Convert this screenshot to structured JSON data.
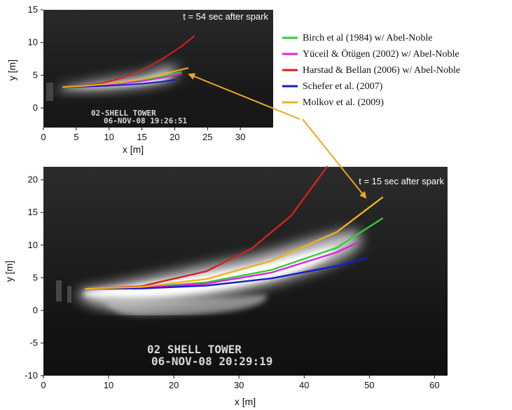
{
  "chart_data": [
    {
      "type": "line",
      "annotation": "t = 54 sec after spark",
      "overlay_text": [
        "02-SHELL TOWER",
        "06-NOV-08 19:26:51"
      ],
      "xlabel": "x [m]",
      "ylabel": "y [m]",
      "xlim": [
        0,
        35
      ],
      "ylim": [
        -3,
        15
      ],
      "xticks": [
        0,
        5,
        10,
        15,
        20,
        25,
        30
      ],
      "yticks": [
        0,
        5,
        10,
        15
      ],
      "background": "grayscale photograph of a jet fire",
      "series": [
        {
          "name": "Birch et al (1984) w/ Abel-Noble",
          "color": "#33cc33",
          "x": [
            3,
            6,
            9,
            12,
            15,
            18,
            21
          ],
          "y": [
            3.2,
            3.3,
            3.5,
            3.8,
            4.2,
            4.8,
            5.5
          ]
        },
        {
          "name": "Yüceil & Ötügen (2002) w/ Abel-Noble",
          "color": "#dd22dd",
          "x": [
            3,
            6,
            9,
            12,
            15,
            18,
            21
          ],
          "y": [
            3.2,
            3.3,
            3.5,
            3.75,
            4.1,
            4.6,
            5.2
          ]
        },
        {
          "name": "Harstad & Bellan (2006) w/ Abel-Noble",
          "color": "#d62020",
          "x": [
            3,
            6,
            9,
            12,
            15,
            18,
            21,
            23
          ],
          "y": [
            3.2,
            3.4,
            3.8,
            4.6,
            5.8,
            7.4,
            9.4,
            11
          ]
        },
        {
          "name": "Schefer et al. (2007)",
          "color": "#1a1acc",
          "x": [
            3,
            6,
            9,
            12,
            15,
            18,
            20
          ],
          "y": [
            3.2,
            3.25,
            3.35,
            3.5,
            3.7,
            4.0,
            4.3
          ]
        },
        {
          "name": "Molkov et al. (2009)",
          "color": "#f0b020",
          "x": [
            3,
            6,
            9,
            12,
            15,
            18,
            20,
            22
          ],
          "y": [
            3.2,
            3.35,
            3.6,
            3.9,
            4.4,
            5.1,
            5.6,
            6.1
          ]
        }
      ]
    },
    {
      "type": "line",
      "annotation": "t = 15 sec after spark",
      "overlay_text": [
        "02 SHELL TOWER",
        "06-NOV-08 20:29:19"
      ],
      "xlabel": "x [m]",
      "ylabel": "y [m]",
      "xlim": [
        0,
        62
      ],
      "ylim": [
        -10,
        22
      ],
      "xticks": [
        0,
        10,
        20,
        30,
        40,
        50,
        60
      ],
      "yticks": [
        -10,
        -5,
        0,
        5,
        10,
        15,
        20
      ],
      "background": "grayscale photograph of a jet fire",
      "series": [
        {
          "name": "Birch et al (1984) w/ Abel-Noble",
          "color": "#33cc33",
          "x": [
            6.5,
            15,
            25,
            35,
            45,
            52
          ],
          "y": [
            3.3,
            3.5,
            4.3,
            6.2,
            9.6,
            14.1
          ]
        },
        {
          "name": "Yüceil & Ötügen (2002) w/ Abel-Noble",
          "color": "#dd22dd",
          "x": [
            6.5,
            15,
            25,
            35,
            45,
            48
          ],
          "y": [
            3.3,
            3.45,
            4.1,
            5.8,
            8.9,
            10.3
          ]
        },
        {
          "name": "Harstad & Bellan (2006) w/ Abel-Noble",
          "color": "#d62020",
          "x": [
            6.5,
            15,
            25,
            32,
            38,
            43.5
          ],
          "y": [
            3.3,
            3.7,
            6.0,
            9.5,
            14.5,
            22
          ]
        },
        {
          "name": "Schefer et al. (2007)",
          "color": "#1a1acc",
          "x": [
            6.5,
            15,
            25,
            35,
            45,
            49.5
          ],
          "y": [
            3.3,
            3.35,
            3.8,
            4.9,
            6.8,
            8.0
          ]
        },
        {
          "name": "Molkov et al. (2009)",
          "color": "#f0b020",
          "x": [
            6.5,
            15,
            25,
            35,
            45,
            52
          ],
          "y": [
            3.3,
            3.6,
            4.8,
            7.6,
            12.0,
            17.3
          ]
        }
      ]
    }
  ],
  "legend": [
    {
      "label": "Birch et al (1984) w/ Abel-Noble",
      "color": "#33cc33"
    },
    {
      "label": "Yüceil & Ötügen (2002) w/ Abel-Noble",
      "color": "#dd22dd"
    },
    {
      "label": "Harstad & Bellan (2006) w/ Abel-Noble",
      "color": "#d62020"
    },
    {
      "label": "Schefer et al. (2007)",
      "color": "#1a1acc"
    },
    {
      "label": "Molkov et al. (2009)",
      "color": "#f0b020"
    }
  ],
  "pointer_arrows": {
    "color": "#e8a820",
    "from": "legend: Molkov et al. (2009)",
    "to": [
      "top plot Molkov curve end",
      "bottom plot Molkov curve end"
    ]
  }
}
